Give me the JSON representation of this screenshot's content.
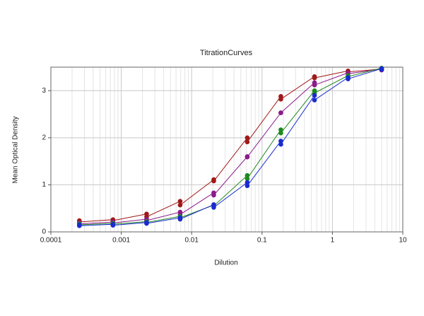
{
  "chart_data": {
    "type": "scatter-line",
    "title": "TitrationCurves",
    "x_label": "Dilution",
    "y_label": "Mean Optical Density",
    "x": [
      0.000254,
      0.000254,
      0.000762,
      0.000762,
      0.00229,
      0.00229,
      0.00686,
      0.00686,
      0.0206,
      0.0206,
      0.0617,
      0.0617,
      0.185,
      0.185,
      0.556,
      0.556,
      1.667,
      1.667,
      5,
      5
    ],
    "series": [
      {
        "color": "#a01818",
        "values": [
          0.24,
          0.21,
          0.26,
          0.24,
          0.38,
          0.32,
          0.65,
          0.57,
          1.11,
          1.08,
          2.0,
          1.91,
          2.88,
          2.82,
          3.3,
          3.27,
          3.42,
          3.4,
          3.46,
          3.44
        ]
      },
      {
        "color": "#8b1a8b",
        "values": [
          0.19,
          0.17,
          0.21,
          0.19,
          0.27,
          0.24,
          0.42,
          0.37,
          0.83,
          0.78,
          1.6,
          1.59,
          2.53,
          2.53,
          3.17,
          3.12,
          3.38,
          3.36,
          3.46,
          3.44
        ]
      },
      {
        "color": "#1e8a1e",
        "values": [
          0.17,
          0.15,
          0.18,
          0.16,
          0.22,
          0.2,
          0.33,
          0.3,
          0.57,
          0.55,
          1.2,
          1.13,
          2.17,
          2.1,
          3.0,
          2.95,
          3.32,
          3.3,
          3.48,
          3.46
        ]
      },
      {
        "color": "#1a2ad0",
        "values": [
          0.15,
          0.13,
          0.16,
          0.14,
          0.2,
          0.18,
          0.3,
          0.27,
          0.58,
          0.52,
          1.05,
          0.98,
          1.93,
          1.86,
          2.9,
          2.8,
          3.28,
          3.25,
          3.47,
          3.45
        ]
      }
    ],
    "xlim": [
      0.0001,
      10
    ],
    "xticks": [
      0.0001,
      0.001,
      0.01,
      0.1,
      1,
      10
    ],
    "xscale": "log",
    "ylim": [
      0,
      3.5
    ],
    "yticks": [
      0,
      1,
      2,
      3
    ],
    "grid": true,
    "minor_grid": true
  }
}
